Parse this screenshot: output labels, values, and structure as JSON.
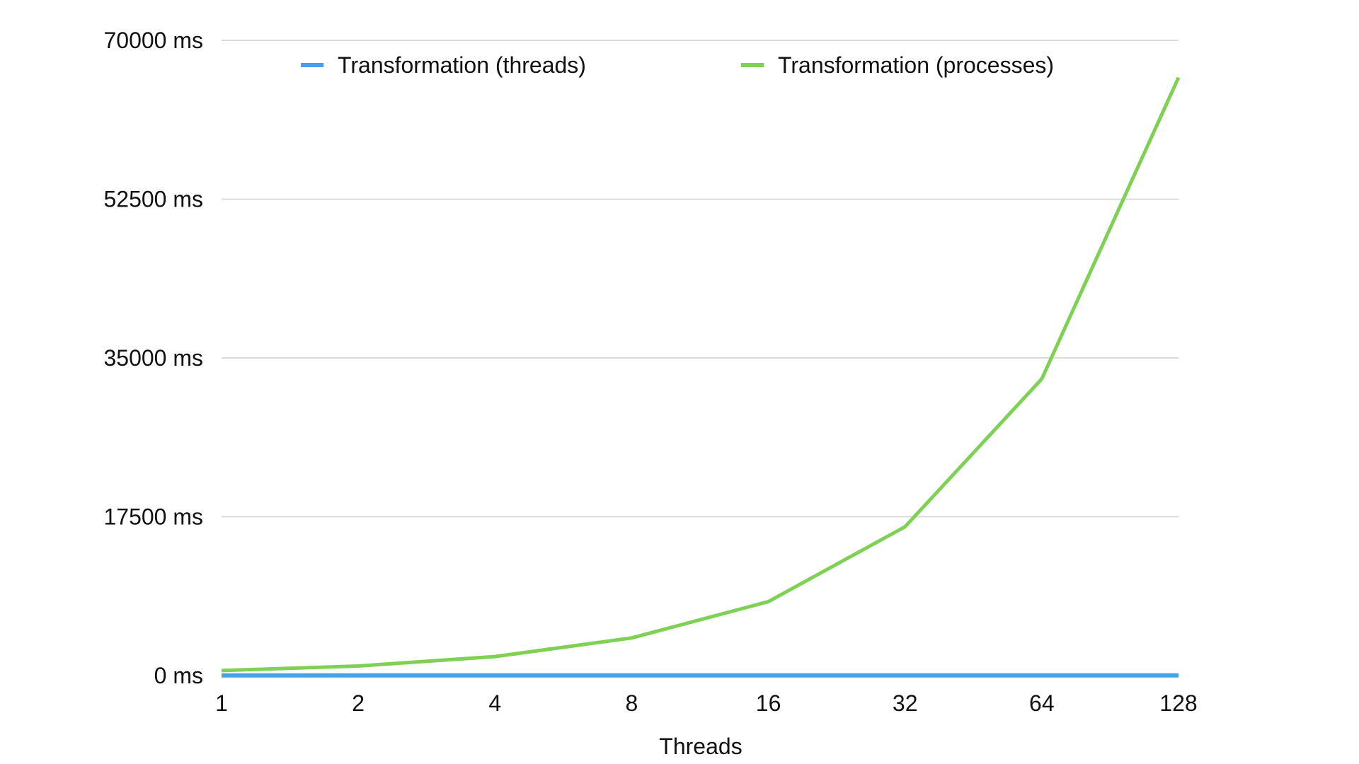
{
  "chart_data": {
    "type": "line",
    "title": "",
    "xlabel": "Threads",
    "ylabel": "",
    "categories": [
      "1",
      "2",
      "4",
      "8",
      "16",
      "32",
      "64",
      "128"
    ],
    "y_ticks": [
      "0 ms",
      "17500 ms",
      "35000 ms",
      "52500 ms",
      "70000 ms"
    ],
    "y_tick_values": [
      0,
      17500,
      35000,
      52500,
      70000
    ],
    "ylim": [
      0,
      70000
    ],
    "grid": true,
    "legend_position": "top",
    "series": [
      {
        "name": "Transformation (threads)",
        "color": "#4a9eec",
        "values": [
          15,
          15,
          15,
          15,
          15,
          15,
          15,
          15
        ]
      },
      {
        "name": "Transformation (processes)",
        "color": "#7fd155",
        "values": [
          550,
          1050,
          2100,
          4150,
          8150,
          16400,
          32700,
          65900
        ]
      }
    ]
  }
}
